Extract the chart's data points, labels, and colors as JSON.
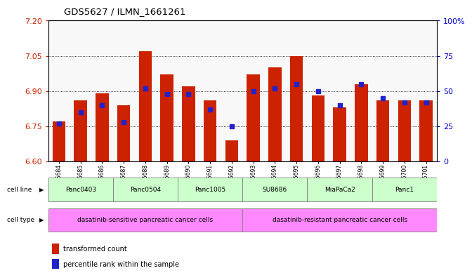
{
  "title": "GDS5627 / ILMN_1661261",
  "samples": [
    "GSM1435684",
    "GSM1435685",
    "GSM1435686",
    "GSM1435687",
    "GSM1435688",
    "GSM1435689",
    "GSM1435690",
    "GSM1435691",
    "GSM1435692",
    "GSM1435693",
    "GSM1435694",
    "GSM1435695",
    "GSM1435696",
    "GSM1435697",
    "GSM1435698",
    "GSM1435699",
    "GSM1435700",
    "GSM1435701"
  ],
  "bar_values": [
    6.77,
    6.86,
    6.89,
    6.84,
    7.07,
    6.97,
    6.92,
    6.86,
    6.69,
    6.97,
    7.0,
    7.05,
    6.88,
    6.83,
    6.93,
    6.86,
    6.86,
    6.86
  ],
  "blue_dot_values": [
    27,
    35,
    40,
    28,
    52,
    48,
    48,
    37,
    25,
    50,
    52,
    55,
    50,
    40,
    55,
    45,
    42,
    42
  ],
  "ylim_left": [
    6.6,
    7.2
  ],
  "ylim_right": [
    0,
    100
  ],
  "yticks_left": [
    6.6,
    6.75,
    6.9,
    7.05,
    7.2
  ],
  "yticks_right": [
    0,
    25,
    50,
    75,
    100
  ],
  "bar_color": "#cc2200",
  "dot_color": "#2222cc",
  "cell_lines": [
    {
      "label": "Panc0403",
      "start": 0,
      "end": 2
    },
    {
      "label": "Panc0504",
      "start": 3,
      "end": 5
    },
    {
      "label": "Panc1005",
      "start": 6,
      "end": 8
    },
    {
      "label": "SU8686",
      "start": 9,
      "end": 11
    },
    {
      "label": "MiaPaCa2",
      "start": 12,
      "end": 14
    },
    {
      "label": "Panc1",
      "start": 15,
      "end": 17
    }
  ],
  "cell_line_color": "#ccffcc",
  "cell_line_border": "#aaaaaa",
  "cell_types": [
    {
      "label": "dasatinib-sensitive pancreatic cancer cells",
      "start": 0,
      "end": 8
    },
    {
      "label": "dasatinib-resistant pancreatic cancer cells",
      "start": 9,
      "end": 17
    }
  ],
  "cell_type_color": "#ff88ff",
  "cell_type_border": "#aaaaaa",
  "legend_red": "transformed count",
  "legend_blue": "percentile rank within the sample",
  "base_value": 6.6,
  "background_color": "#ffffff",
  "n_samples": 18
}
